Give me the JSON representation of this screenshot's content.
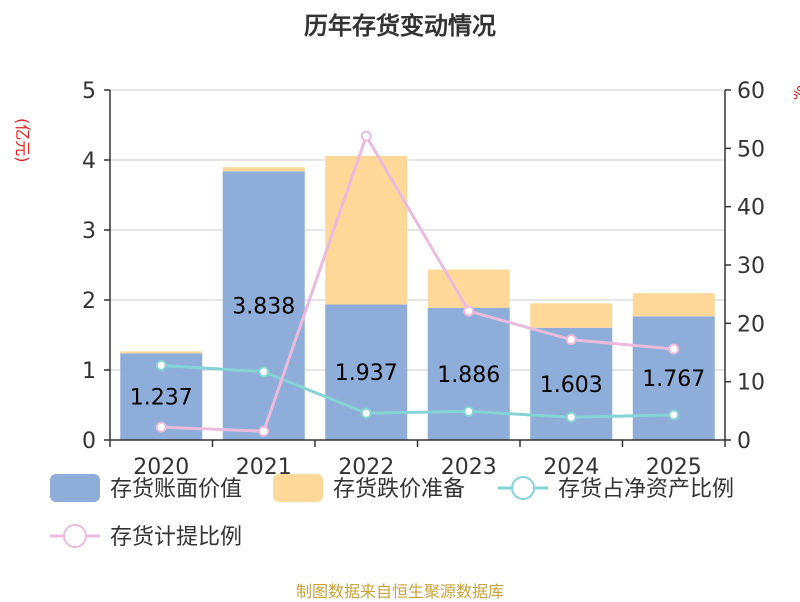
{
  "chart_data": {
    "type": "bar",
    "title": "历年存货变动情况",
    "categories": [
      "2020",
      "2021",
      "2022",
      "2023",
      "2024",
      "2025"
    ],
    "y_left": {
      "unit_label": "(亿元)",
      "range": [
        0,
        5
      ],
      "ticks": [
        "0",
        "1",
        "2",
        "3",
        "4",
        "5"
      ]
    },
    "y_right": {
      "unit_label": "%",
      "range": [
        0,
        60
      ],
      "ticks": [
        "0",
        "10",
        "20",
        "30",
        "40",
        "50",
        "60"
      ]
    },
    "series": [
      {
        "name": "存货账面价值",
        "kind": "bar",
        "axis": "left",
        "stack": "inv",
        "color": "#8eadd9",
        "values": [
          1.237,
          3.838,
          1.937,
          1.886,
          1.603,
          1.767
        ],
        "labels": [
          "1.237",
          "3.838",
          "1.937",
          "1.886",
          "1.603",
          "1.767"
        ]
      },
      {
        "name": "存货跌价准备",
        "kind": "bar",
        "axis": "left",
        "stack": "inv",
        "color": "#fdd898",
        "values": [
          0.03,
          0.06,
          2.12,
          0.55,
          0.35,
          0.33
        ]
      },
      {
        "name": "存货占净资产比例",
        "kind": "line",
        "axis": "right",
        "color": "#85d3d6",
        "values": [
          12.8,
          11.7,
          4.6,
          4.9,
          3.9,
          4.3
        ]
      },
      {
        "name": "存货计提比例",
        "kind": "line",
        "axis": "right",
        "color": "#ebbbdd",
        "values": [
          2.2,
          1.5,
          52.1,
          22.1,
          17.2,
          15.6
        ]
      }
    ],
    "grid": true,
    "legend_position": "bottom"
  },
  "source_note": "制图数据来自恒生聚源数据库"
}
